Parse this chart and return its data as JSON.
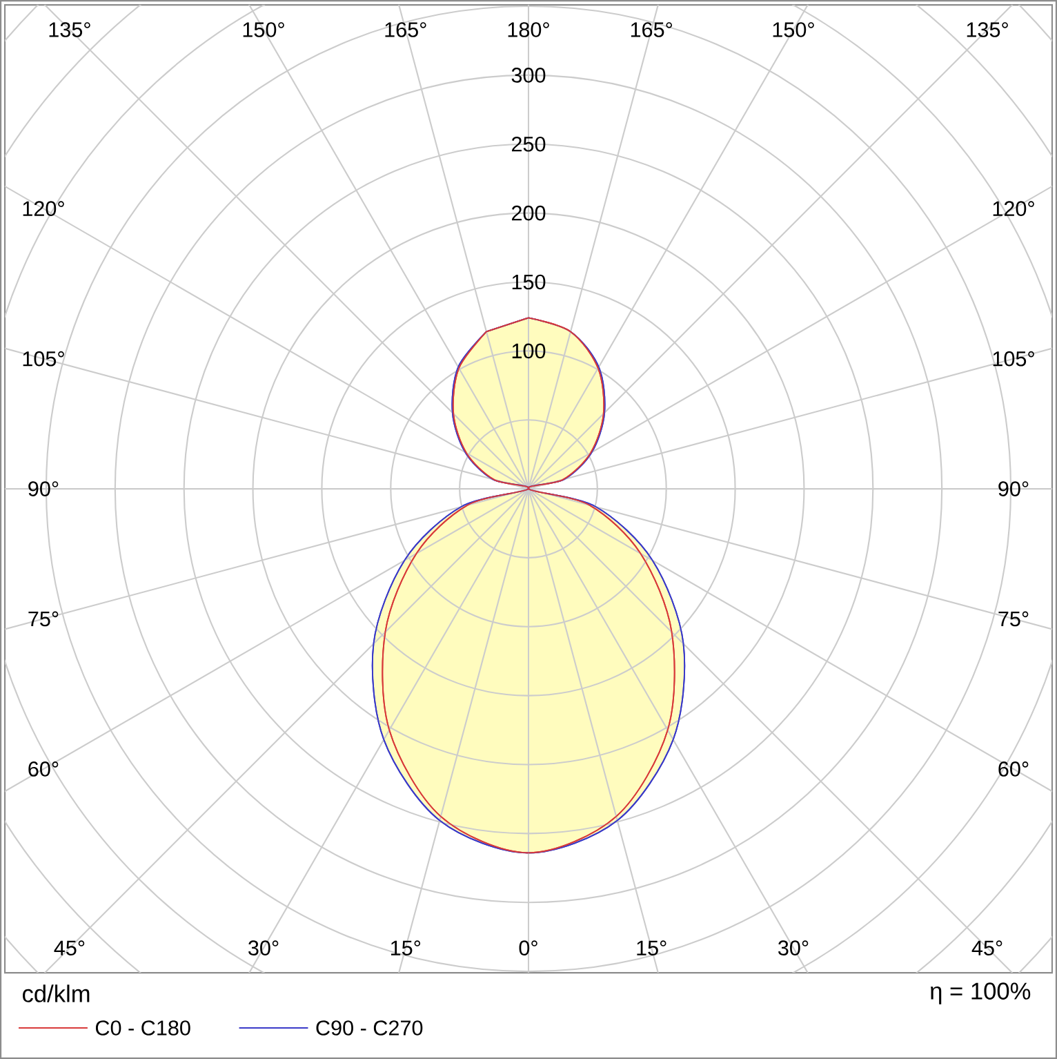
{
  "chart_data": {
    "type": "radar",
    "categories": [
      "180°",
      "165°",
      "150°",
      "135°",
      "120°",
      "105°",
      "90°",
      "75°",
      "60°",
      "45°",
      "30°",
      "15°",
      "0°",
      "15°",
      "30°",
      "45°",
      "60°",
      "75°",
      "90°",
      "105°",
      "120°",
      "135°",
      "150°",
      "165°"
    ],
    "series": [
      {
        "name": "C0 - C180",
        "color": "#d83a3a",
        "values": [
          124,
          118,
          101,
          77,
          52,
          26,
          0,
          46,
          94,
          147,
          202,
          246,
          264,
          246,
          202,
          147,
          94,
          46,
          0,
          26,
          52,
          77,
          101,
          118
        ]
      },
      {
        "name": "C90 - C270",
        "color": "#3a3ac8",
        "values": [
          124,
          118,
          102,
          78,
          53,
          27,
          0,
          51,
          104,
          159,
          210,
          249,
          264,
          249,
          210,
          159,
          104,
          51,
          0,
          27,
          53,
          78,
          102,
          118
        ]
      }
    ],
    "ylim": [
      0,
      500
    ],
    "yticks": [
      {
        "value": 100,
        "label": "100"
      },
      {
        "value": 150,
        "label": "150"
      },
      {
        "value": 200,
        "label": "200"
      },
      {
        "value": 250,
        "label": "250"
      },
      {
        "value": 300,
        "label": "300"
      }
    ],
    "grid": true,
    "legend": "bottom",
    "annotations": [
      "cd/klm",
      "η = 100%"
    ]
  }
}
